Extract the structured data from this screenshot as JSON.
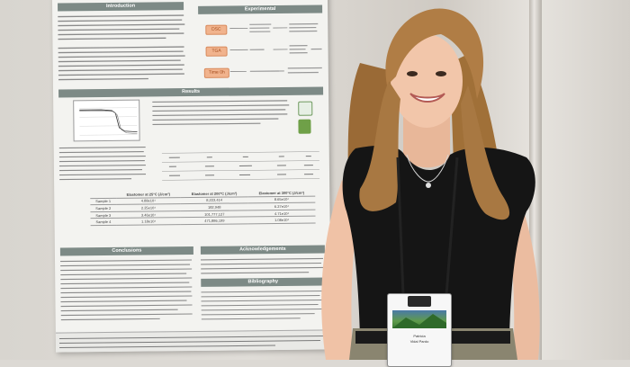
{
  "poster": {
    "sections": {
      "introduction": "Introduction",
      "experimental": "Experimental",
      "results": "Results",
      "conclusions": "Conclusions",
      "acknowledgements": "Acknowledgements",
      "bibliography": "Bibliography"
    },
    "methods": [
      "DSC",
      "TGA",
      "Time 0h"
    ],
    "table_headers": [
      "",
      "Elastomer at 25°C (J/cm³)",
      "Elastomer at 200°C (J/cm³)",
      "Elastomer at 300°C (J/cm³)"
    ],
    "table_rows": [
      [
        "Sample 1",
        "4.88e10⁴",
        "8,223,414",
        "8.65e10⁴"
      ],
      [
        "Sample 2",
        "2.25e10⁴",
        "182,948",
        "6.27e10⁴"
      ],
      [
        "Sample 3",
        "3.46e10⁴",
        "101,777,127",
        "4.71e10⁴"
      ],
      [
        "Sample 4",
        "1.18e10⁴",
        "471,886,199",
        "1.08e10⁴"
      ]
    ]
  },
  "badge": {
    "name_line1": "Patricia",
    "name_line2": "Vidal Pardo"
  },
  "colors": {
    "poster_bg": "#f3f3f0",
    "section_header": "#7d8a86",
    "pill": "#f1b38d",
    "hair": "#a87842",
    "shirt": "#151515"
  }
}
